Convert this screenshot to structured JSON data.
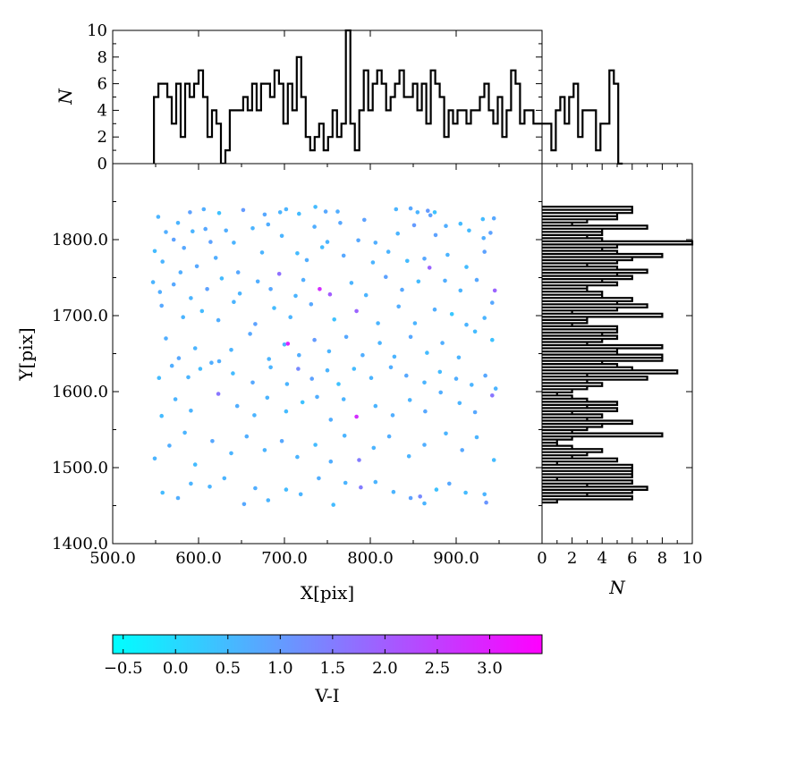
{
  "colors": {
    "cmap_low": "#00ffff",
    "cmap_high": "#ff00ff",
    "hist_line": "#000000"
  },
  "labels": {
    "x": "X[pix]",
    "y": "Y[pix]",
    "n": "N",
    "colorbar": "V-I"
  },
  "chart_data": [
    {
      "type": "scatter",
      "xlim": [
        500,
        1000
      ],
      "ylim": [
        1400,
        1900
      ],
      "xticks": [
        "500.0",
        "600.0",
        "700.0",
        "800.0",
        "900.0"
      ],
      "yticks": [
        "1400.0",
        "1500.0",
        "1600.0",
        "1700.0",
        "1800.0"
      ],
      "xlabel": "X[pix]",
      "ylabel": "Y[pix]",
      "color_label": "V-I",
      "clim": [
        -0.6,
        3.5
      ],
      "points": [
        [
          553,
          1830,
          0.6
        ],
        [
          576,
          1822,
          0.6
        ],
        [
          590,
          1836,
          0.9
        ],
        [
          606,
          1840,
          0.7
        ],
        [
          624,
          1835,
          0.4
        ],
        [
          652,
          1839,
          1.0
        ],
        [
          677,
          1833,
          0.8
        ],
        [
          695,
          1836,
          0.6
        ],
        [
          702,
          1840,
          0.6
        ],
        [
          717,
          1834,
          0.5
        ],
        [
          736,
          1843,
          0.5
        ],
        [
          748,
          1837,
          0.8
        ],
        [
          762,
          1837,
          0.7
        ],
        [
          793,
          1826,
          0.9
        ],
        [
          830,
          1840,
          0.6
        ],
        [
          847,
          1841,
          0.8
        ],
        [
          855,
          1836,
          0.6
        ],
        [
          867,
          1838,
          1.0
        ],
        [
          870,
          1832,
          0.9
        ],
        [
          875,
          1836,
          0.4
        ],
        [
          905,
          1821,
          0.5
        ],
        [
          931,
          1827,
          0.5
        ],
        [
          944,
          1828,
          0.8
        ],
        [
          549,
          1785,
          0.5
        ],
        [
          562,
          1810,
          0.7
        ],
        [
          571,
          1800,
          0.9
        ],
        [
          583,
          1789,
          0.8
        ],
        [
          593,
          1811,
          0.6
        ],
        [
          608,
          1814,
          0.8
        ],
        [
          614,
          1797,
          0.9
        ],
        [
          632,
          1812,
          0.7
        ],
        [
          641,
          1796,
          0.6
        ],
        [
          663,
          1815,
          0.6
        ],
        [
          681,
          1820,
          0.7
        ],
        [
          697,
          1805,
          0.6
        ],
        [
          735,
          1817,
          0.7
        ],
        [
          750,
          1797,
          0.6
        ],
        [
          765,
          1822,
          0.8
        ],
        [
          786,
          1799,
          0.8
        ],
        [
          806,
          1796,
          0.7
        ],
        [
          832,
          1808,
          0.6
        ],
        [
          851,
          1819,
          1.0
        ],
        [
          876,
          1806,
          0.9
        ],
        [
          888,
          1818,
          0.7
        ],
        [
          915,
          1812,
          0.5
        ],
        [
          932,
          1802,
          0.7
        ],
        [
          940,
          1809,
          0.9
        ],
        [
          558,
          1771,
          0.6
        ],
        [
          579,
          1757,
          0.7
        ],
        [
          598,
          1765,
          0.8
        ],
        [
          620,
          1776,
          0.7
        ],
        [
          646,
          1757,
          0.8
        ],
        [
          674,
          1783,
          0.6
        ],
        [
          715,
          1782,
          0.5
        ],
        [
          726,
          1773,
          0.7
        ],
        [
          744,
          1790,
          0.5
        ],
        [
          769,
          1779,
          0.8
        ],
        [
          803,
          1770,
          0.6
        ],
        [
          821,
          1784,
          0.6
        ],
        [
          843,
          1772,
          0.5
        ],
        [
          863,
          1775,
          0.8
        ],
        [
          890,
          1780,
          0.6
        ],
        [
          912,
          1764,
          0.5
        ],
        [
          933,
          1784,
          0.9
        ],
        [
          547,
          1744,
          0.6
        ],
        [
          555,
          1731,
          0.7
        ],
        [
          571,
          1741,
          0.8
        ],
        [
          591,
          1723,
          0.6
        ],
        [
          610,
          1735,
          0.9
        ],
        [
          627,
          1749,
          0.5
        ],
        [
          648,
          1729,
          0.6
        ],
        [
          669,
          1745,
          0.7
        ],
        [
          684,
          1735,
          0.8
        ],
        [
          694,
          1755,
          1.7
        ],
        [
          713,
          1726,
          0.6
        ],
        [
          722,
          1747,
          0.7
        ],
        [
          741,
          1735,
          2.8
        ],
        [
          753,
          1728,
          2.0
        ],
        [
          778,
          1743,
          0.6
        ],
        [
          795,
          1727,
          0.6
        ],
        [
          818,
          1751,
          0.9
        ],
        [
          837,
          1734,
          0.8
        ],
        [
          856,
          1745,
          0.5
        ],
        [
          869,
          1763,
          1.9
        ],
        [
          887,
          1746,
          0.7
        ],
        [
          905,
          1733,
          0.6
        ],
        [
          924,
          1747,
          0.8
        ],
        [
          945,
          1733,
          1.9
        ],
        [
          557,
          1713,
          0.8
        ],
        [
          582,
          1698,
          0.6
        ],
        [
          604,
          1706,
          0.5
        ],
        [
          623,
          1694,
          0.7
        ],
        [
          641,
          1718,
          0.6
        ],
        [
          666,
          1689,
          0.9
        ],
        [
          688,
          1710,
          0.5
        ],
        [
          707,
          1698,
          0.6
        ],
        [
          731,
          1715,
          0.8
        ],
        [
          758,
          1695,
          0.4
        ],
        [
          784,
          1706,
          1.9
        ],
        [
          809,
          1690,
          0.6
        ],
        [
          833,
          1712,
          0.7
        ],
        [
          852,
          1690,
          0.6
        ],
        [
          875,
          1708,
          0.7
        ],
        [
          895,
          1702,
          0.3
        ],
        [
          912,
          1688,
          0.6
        ],
        [
          933,
          1697,
          0.6
        ],
        [
          942,
          1717,
          0.8
        ],
        [
          562,
          1670,
          0.7
        ],
        [
          577,
          1644,
          0.8
        ],
        [
          596,
          1657,
          0.6
        ],
        [
          615,
          1638,
          0.7
        ],
        [
          638,
          1655,
          0.6
        ],
        [
          660,
          1676,
          0.8
        ],
        [
          682,
          1643,
          0.6
        ],
        [
          700,
          1662,
          0.6
        ],
        [
          704,
          1663,
          2.9
        ],
        [
          717,
          1648,
          0.7
        ],
        [
          735,
          1668,
          1.0
        ],
        [
          752,
          1653,
          0.6
        ],
        [
          772,
          1672,
          0.8
        ],
        [
          791,
          1648,
          0.7
        ],
        [
          811,
          1664,
          0.6
        ],
        [
          828,
          1646,
          0.6
        ],
        [
          847,
          1672,
          0.8
        ],
        [
          866,
          1651,
          0.5
        ],
        [
          884,
          1664,
          0.7
        ],
        [
          903,
          1645,
          0.6
        ],
        [
          922,
          1679,
          0.5
        ],
        [
          942,
          1668,
          0.4
        ],
        [
          554,
          1618,
          0.5
        ],
        [
          569,
          1634,
          0.7
        ],
        [
          588,
          1619,
          0.6
        ],
        [
          602,
          1630,
          0.5
        ],
        [
          624,
          1640,
          0.7
        ],
        [
          640,
          1624,
          0.5
        ],
        [
          663,
          1612,
          0.8
        ],
        [
          684,
          1632,
          0.6
        ],
        [
          703,
          1610,
          0.6
        ],
        [
          716,
          1630,
          1.3
        ],
        [
          732,
          1617,
          0.9
        ],
        [
          750,
          1628,
          0.6
        ],
        [
          763,
          1610,
          0.4
        ],
        [
          781,
          1630,
          0.5
        ],
        [
          801,
          1618,
          0.6
        ],
        [
          824,
          1632,
          0.7
        ],
        [
          842,
          1621,
          0.8
        ],
        [
          863,
          1612,
          0.6
        ],
        [
          881,
          1626,
          0.5
        ],
        [
          900,
          1617,
          0.7
        ],
        [
          918,
          1609,
          0.6
        ],
        [
          934,
          1621,
          0.8
        ],
        [
          946,
          1604,
          0.6
        ],
        [
          557,
          1568,
          0.5
        ],
        [
          573,
          1590,
          0.6
        ],
        [
          591,
          1575,
          0.6
        ],
        [
          623,
          1597,
          1.6
        ],
        [
          645,
          1581,
          0.7
        ],
        [
          665,
          1569,
          0.6
        ],
        [
          680,
          1592,
          0.6
        ],
        [
          702,
          1574,
          0.5
        ],
        [
          721,
          1586,
          0.4
        ],
        [
          738,
          1593,
          0.7
        ],
        [
          754,
          1563,
          0.7
        ],
        [
          769,
          1590,
          0.6
        ],
        [
          784,
          1567,
          2.8
        ],
        [
          806,
          1581,
          0.6
        ],
        [
          826,
          1569,
          0.7
        ],
        [
          846,
          1589,
          0.6
        ],
        [
          864,
          1574,
          0.8
        ],
        [
          882,
          1599,
          0.7
        ],
        [
          904,
          1585,
          0.6
        ],
        [
          922,
          1573,
          0.8
        ],
        [
          942,
          1595,
          1.6
        ],
        [
          549,
          1512,
          0.6
        ],
        [
          566,
          1529,
          0.7
        ],
        [
          584,
          1546,
          0.6
        ],
        [
          596,
          1504,
          0.5
        ],
        [
          616,
          1535,
          0.8
        ],
        [
          638,
          1519,
          0.6
        ],
        [
          656,
          1541,
          0.7
        ],
        [
          677,
          1523,
          0.6
        ],
        [
          697,
          1535,
          0.8
        ],
        [
          715,
          1514,
          0.6
        ],
        [
          736,
          1530,
          0.5
        ],
        [
          754,
          1508,
          0.7
        ],
        [
          770,
          1542,
          0.6
        ],
        [
          787,
          1510,
          1.5
        ],
        [
          804,
          1526,
          0.6
        ],
        [
          822,
          1541,
          0.7
        ],
        [
          845,
          1515,
          0.6
        ],
        [
          863,
          1530,
          0.7
        ],
        [
          888,
          1545,
          0.6
        ],
        [
          907,
          1523,
          0.8
        ],
        [
          924,
          1540,
          0.6
        ],
        [
          944,
          1510,
          0.5
        ],
        [
          558,
          1467,
          0.5
        ],
        [
          576,
          1460,
          0.7
        ],
        [
          591,
          1479,
          0.6
        ],
        [
          613,
          1475,
          0.6
        ],
        [
          630,
          1486,
          0.6
        ],
        [
          653,
          1452,
          0.8
        ],
        [
          666,
          1473,
          0.7
        ],
        [
          681,
          1457,
          0.6
        ],
        [
          702,
          1471,
          0.5
        ],
        [
          719,
          1465,
          0.6
        ],
        [
          740,
          1486,
          0.7
        ],
        [
          757,
          1451,
          0.5
        ],
        [
          771,
          1480,
          0.6
        ],
        [
          789,
          1474,
          1.5
        ],
        [
          806,
          1481,
          0.6
        ],
        [
          827,
          1468,
          0.6
        ],
        [
          847,
          1460,
          0.9
        ],
        [
          858,
          1462,
          1.3
        ],
        [
          863,
          1453,
          0.6
        ],
        [
          877,
          1471,
          0.4
        ],
        [
          892,
          1479,
          0.8
        ],
        [
          911,
          1467,
          0.5
        ],
        [
          933,
          1465,
          0.6
        ],
        [
          935,
          1454,
          1.1
        ]
      ]
    },
    {
      "type": "bar",
      "title": "",
      "orientation": "vertical",
      "xlim": [
        500,
        1000
      ],
      "ylim": [
        0,
        10
      ],
      "yticks": [
        "0",
        "2",
        "4",
        "6",
        "8",
        "10"
      ],
      "ylabel": "N",
      "bin_start": 548,
      "bin_width": 5.2,
      "counts": [
        5,
        6,
        6,
        5,
        3,
        6,
        2,
        6,
        5,
        6,
        7,
        5,
        2,
        4,
        3,
        0,
        1,
        4,
        4,
        4,
        5,
        4,
        6,
        4,
        6,
        6,
        5,
        7,
        6,
        3,
        6,
        4,
        8,
        5,
        2,
        1,
        2,
        3,
        1,
        2,
        4,
        2,
        3,
        10,
        3,
        1,
        4,
        7,
        4,
        6,
        7,
        6,
        4,
        5,
        6,
        7,
        5,
        5,
        6,
        4,
        6,
        3,
        7,
        6,
        5,
        2,
        4,
        3,
        4,
        4,
        3,
        4,
        4,
        5,
        6,
        4,
        3,
        5,
        2,
        4,
        7,
        6,
        3,
        4,
        4,
        3,
        3,
        3,
        3,
        1,
        4,
        5,
        3,
        5,
        6,
        2,
        4,
        4,
        4,
        1,
        3,
        3,
        7,
        6,
        0
      ]
    },
    {
      "type": "bar",
      "title": "",
      "orientation": "horizontal",
      "ylim": [
        1400,
        1900
      ],
      "xlim": [
        0,
        10
      ],
      "xticks": [
        "0",
        "2",
        "4",
        "6",
        "8",
        "10"
      ],
      "xlabel": "N",
      "bin_start": 1450,
      "bin_width": 4.14,
      "counts": [
        0,
        1,
        6,
        3,
        6,
        7,
        3,
        6,
        1,
        6,
        6,
        6,
        6,
        1,
        5,
        2,
        3,
        4,
        2,
        1,
        1,
        2,
        8,
        2,
        3,
        4,
        6,
        3,
        4,
        2,
        5,
        3,
        5,
        3,
        2,
        1,
        2,
        3,
        4,
        3,
        7,
        3,
        9,
        6,
        5,
        4,
        8,
        8,
        5,
        5,
        8,
        3,
        4,
        5,
        4,
        5,
        5,
        2,
        3,
        3,
        8,
        2,
        5,
        7,
        5,
        6,
        4,
        4,
        3,
        3,
        5,
        4,
        6,
        5,
        7,
        5,
        3,
        5,
        6,
        8,
        5,
        4,
        5,
        10,
        4,
        3,
        4,
        4,
        7,
        2,
        3,
        5,
        5,
        6,
        6,
        0,
        0
      ]
    }
  ]
}
